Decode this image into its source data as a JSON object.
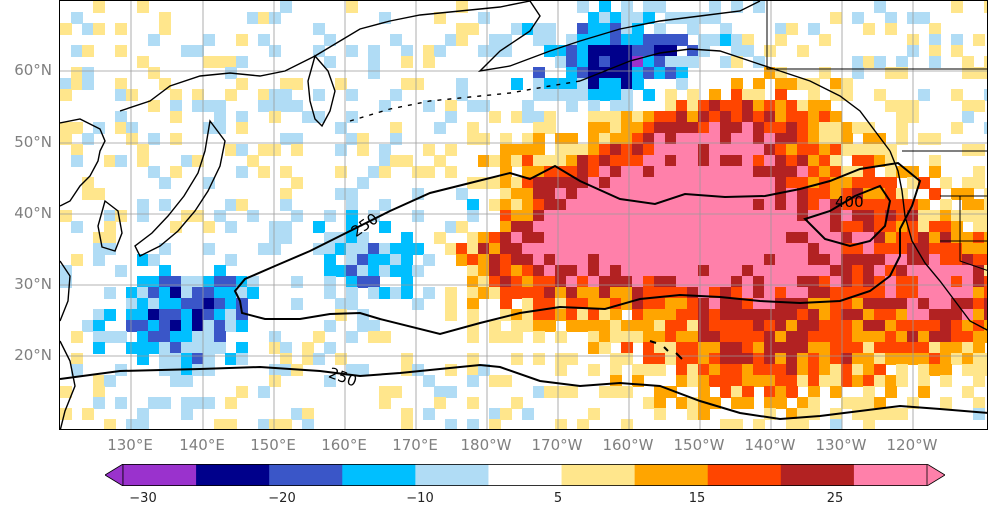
{
  "map": {
    "lat_labels": [
      "60°N",
      "50°N",
      "40°N",
      "30°N",
      "20°N"
    ],
    "lon_labels": [
      "130°E",
      "140°E",
      "150°E",
      "160°E",
      "170°E",
      "180°W",
      "170°W",
      "160°W",
      "150°W",
      "140°W",
      "130°W",
      "120°W"
    ],
    "contour_labels": [
      "250",
      "250",
      "400"
    ],
    "colors": {
      "land_line": "#000000",
      "grid_line": "#9a9a9a"
    }
  },
  "colorbar": {
    "colors": [
      "#9a32cd",
      "#00008b",
      "#3a56c8",
      "#00bfff",
      "#b0dcf5",
      "#ffffff",
      "#ffe68c",
      "#ffa500",
      "#ff4500",
      "#b22222",
      "#ff80aa"
    ],
    "tick_labels": [
      "−30",
      "−20",
      "−10",
      "5",
      "15",
      "25"
    ]
  }
}
